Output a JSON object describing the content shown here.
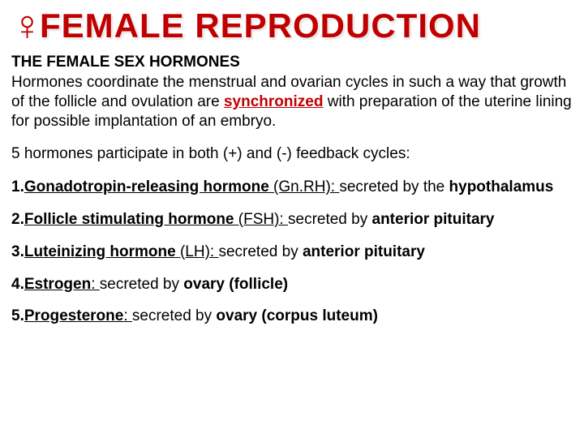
{
  "colors": {
    "accent": "#c00000",
    "text": "#000000",
    "background": "#ffffff"
  },
  "typography": {
    "title_fontsize": 42,
    "heading_fontsize": 19,
    "body_fontsize": 19,
    "font_family": "Arial"
  },
  "title": "FEMALE REPRODUCTION",
  "icon_name": "venus-icon",
  "icon_glyph": "♀",
  "section_heading": "THE FEMALE SEX HORMONES",
  "intro_para": {
    "pre": "Hormones coordinate the menstrual and ovarian cycles in such a way that growth of the follicle and ovulation are ",
    "highlight": "synchronized",
    "post": " with preparation of the uterine lining for possible implantation of an embryo."
  },
  "feedback_line": "5 hormones participate in both (+) and (-) feedback cycles:",
  "hormones": [
    {
      "num": "1.",
      "name": "Gonadotropin-releasing hormone",
      "abbrev": " (Gn.RH):  ",
      "secreted_by_label": "secreted by the ",
      "source": "hypothalamus"
    },
    {
      "num": "2.",
      "name": "Follicle stimulating hormone",
      "abbrev": " (FSH):  ",
      "secreted_by_label": "secreted by ",
      "source": "anterior pituitary"
    },
    {
      "num": "3.",
      "name": "Luteinizing hormone",
      "abbrev": " (LH):  ",
      "secreted_by_label": "secreted by ",
      "source": "anterior pituitary"
    },
    {
      "num": "4.",
      "name": "Estrogen",
      "abbrev": ":  ",
      "secreted_by_label": "secreted by ",
      "source": "ovary (follicle)"
    },
    {
      "num": "5.",
      "name": "Progesterone",
      "abbrev": ":  ",
      "secreted_by_label": "secreted by ",
      "source": "ovary (corpus luteum)"
    }
  ]
}
